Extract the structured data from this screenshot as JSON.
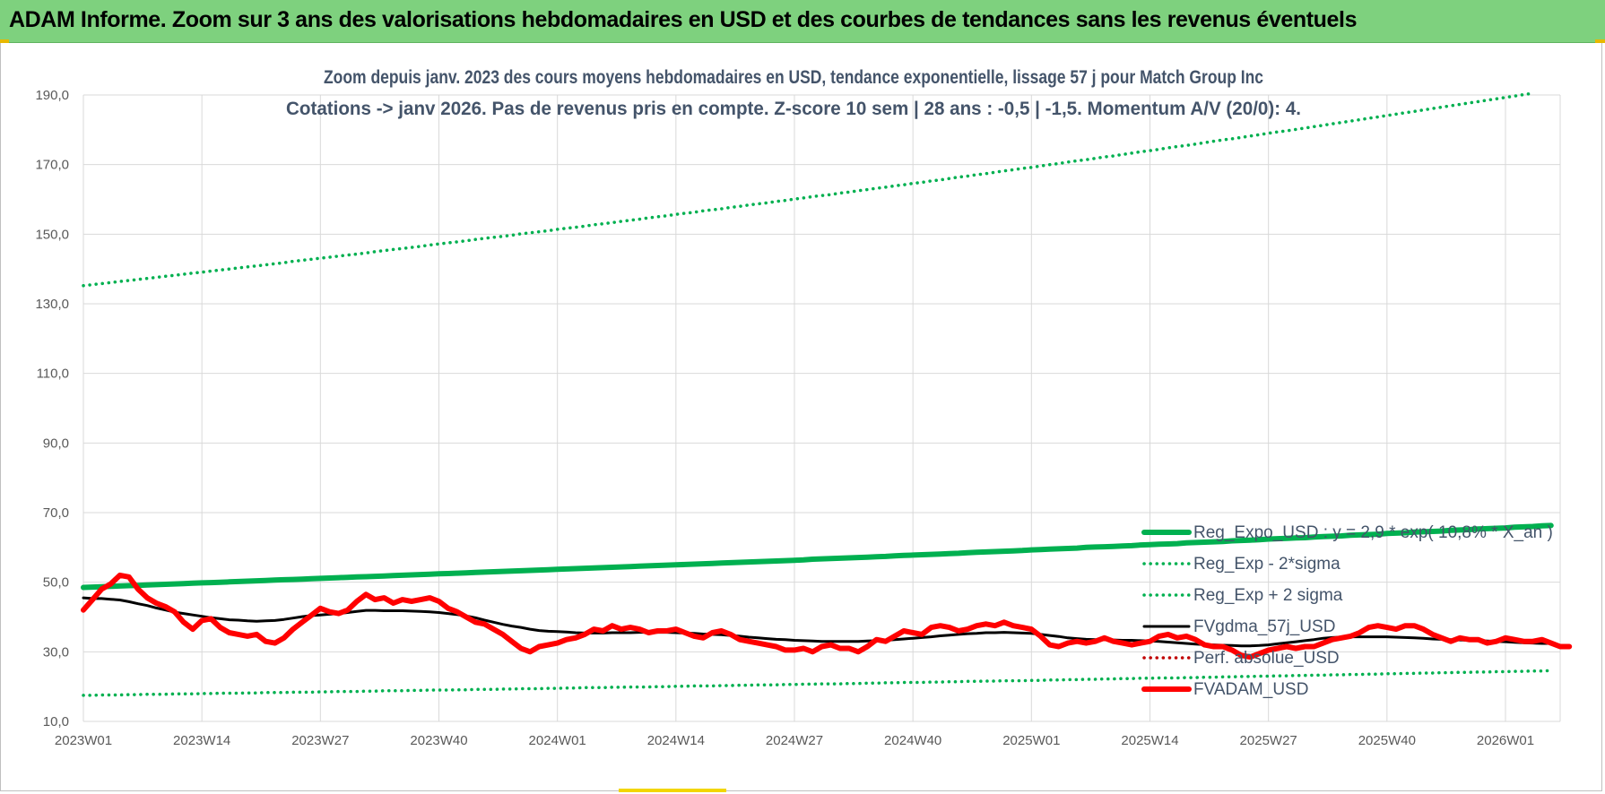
{
  "header": {
    "title": "ADAM Informe. Zoom sur 3 ans des valorisations hebdomadaires en USD et des courbes de tendances sans les revenus éventuels"
  },
  "chart_data": {
    "type": "line",
    "title_lines": [
      "Zoom depuis janv. 2023 des cours moyens hebdomadaires en USD, tendance exponentielle, lissage 57 j pour Match Group Inc",
      "Cotations -> janv 2026. Pas de revenus pris en compte. Z-score 10 sem | 28 ans : -0,5 | -1,5. Momentum A/V (20/0): 4."
    ],
    "xlabel": "",
    "ylabel": "",
    "ylim": [
      10,
      190
    ],
    "x_ticks": [
      "2023W01",
      "2023W14",
      "2023W27",
      "2023W40",
      "2024W01",
      "2024W14",
      "2024W27",
      "2024W40",
      "2025W01",
      "2025W14",
      "2025W27",
      "2025W40",
      "2026W01"
    ],
    "y_ticks": [
      "10,0",
      "30,0",
      "50,0",
      "70,0",
      "90,0",
      "110,0",
      "130,0",
      "150,0",
      "170,0",
      "190,0"
    ],
    "y_tick_values": [
      10,
      30,
      50,
      70,
      90,
      110,
      130,
      150,
      170,
      190
    ],
    "grid": true,
    "legend_position": "right",
    "n_weeks": 162,
    "series": [
      {
        "name": "Reg_Expo_USD : y = 2,9 * exp( 10,8% * X_an )",
        "style": "solid-thick",
        "color": "#00b050",
        "values": [
          48.5,
          48.6,
          48.7,
          48.8,
          48.9,
          49.0,
          49.1,
          49.2,
          49.3,
          49.4,
          49.5,
          49.6,
          49.7,
          49.8,
          49.9,
          50.0,
          50.1,
          50.2,
          50.3,
          50.4,
          50.5,
          50.6,
          50.7,
          50.8,
          50.9,
          51.0,
          51.1,
          51.2,
          51.3,
          51.4,
          51.5,
          51.6,
          51.7,
          51.8,
          51.9,
          52.0,
          52.1,
          52.2,
          52.3,
          52.4,
          52.5,
          52.6,
          52.7,
          52.8,
          52.9,
          53.0,
          53.1,
          53.2,
          53.3,
          53.4,
          53.5,
          53.6,
          53.7,
          53.8,
          53.9,
          54.0,
          54.1,
          54.2,
          54.3,
          54.4,
          54.5,
          54.6,
          54.7,
          54.8,
          54.9,
          55.0,
          55.1,
          55.2,
          55.3,
          55.4,
          55.5,
          55.6,
          55.7,
          55.8,
          55.9,
          56.0,
          56.1,
          56.2,
          56.3,
          56.4,
          56.6,
          56.7,
          56.8,
          56.9,
          57.0,
          57.1,
          57.2,
          57.3,
          57.4,
          57.6,
          57.7,
          57.8,
          57.9,
          58.0,
          58.1,
          58.2,
          58.3,
          58.5,
          58.6,
          58.7,
          58.8,
          58.9,
          59.0,
          59.1,
          59.3,
          59.4,
          59.5,
          59.6,
          59.7,
          59.8,
          60.0,
          60.1,
          60.2,
          60.3,
          60.4,
          60.5,
          60.7,
          60.8,
          60.9,
          61.0,
          61.1,
          61.3,
          61.4,
          61.5,
          61.6,
          61.7,
          61.9,
          62.0,
          62.1,
          62.2,
          62.4,
          62.5,
          62.6,
          62.7,
          62.8,
          63.0,
          63.1,
          63.2,
          63.3,
          63.5,
          63.6,
          63.7,
          63.8,
          64.0,
          64.1,
          64.2,
          64.4,
          64.5,
          64.6,
          64.7,
          64.9,
          65.0,
          65.1,
          65.3,
          65.4,
          65.5,
          65.6,
          65.8,
          65.9,
          66.0,
          66.2,
          66.3
        ]
      },
      {
        "name": "Reg_Exp - 2*sigma",
        "style": "dotted",
        "color": "#00b050",
        "values": [
          17.5,
          17.5,
          17.6,
          17.6,
          17.6,
          17.7,
          17.7,
          17.8,
          17.8,
          17.8,
          17.9,
          17.9,
          17.9,
          18.0,
          18.0,
          18.1,
          18.1,
          18.1,
          18.2,
          18.2,
          18.3,
          18.3,
          18.3,
          18.4,
          18.4,
          18.4,
          18.5,
          18.5,
          18.6,
          18.6,
          18.6,
          18.7,
          18.7,
          18.8,
          18.8,
          18.8,
          18.9,
          18.9,
          19.0,
          19.0,
          19.0,
          19.1,
          19.1,
          19.2,
          19.2,
          19.2,
          19.3,
          19.3,
          19.4,
          19.4,
          19.4,
          19.5,
          19.5,
          19.6,
          19.6,
          19.7,
          19.7,
          19.7,
          19.8,
          19.8,
          19.9,
          19.9,
          19.9,
          20.0,
          20.0,
          20.1,
          20.1,
          20.2,
          20.2,
          20.2,
          20.3,
          20.3,
          20.4,
          20.4,
          20.5,
          20.5,
          20.5,
          20.6,
          20.6,
          20.7,
          20.7,
          20.8,
          20.8,
          20.8,
          20.9,
          20.9,
          21.0,
          21.0,
          21.1,
          21.1,
          21.2,
          21.2,
          21.2,
          21.3,
          21.3,
          21.4,
          21.4,
          21.5,
          21.5,
          21.6,
          21.6,
          21.7,
          21.7,
          21.7,
          21.8,
          21.8,
          21.9,
          21.9,
          22.0,
          22.0,
          22.1,
          22.1,
          22.2,
          22.2,
          22.3,
          22.3,
          22.4,
          22.4,
          22.5,
          22.5,
          22.5,
          22.6,
          22.6,
          22.7,
          22.7,
          22.8,
          22.8,
          22.9,
          22.9,
          23.0,
          23.0,
          23.1,
          23.1,
          23.2,
          23.2,
          23.3,
          23.3,
          23.4,
          23.4,
          23.5,
          23.5,
          23.6,
          23.6,
          23.7,
          23.7,
          23.8,
          23.8,
          23.9,
          23.9,
          24.0,
          24.0,
          24.1,
          24.1,
          24.2,
          24.2,
          24.3,
          24.3,
          24.4,
          24.4,
          24.5,
          24.5,
          24.6
        ]
      },
      {
        "name": "Reg_Exp + 2 sigma",
        "style": "dotted",
        "color": "#00b050",
        "values": [
          135.2,
          135.5,
          135.8,
          136.1,
          136.4,
          136.7,
          137.0,
          137.3,
          137.6,
          137.9,
          138.2,
          138.5,
          138.8,
          139.1,
          139.4,
          139.7,
          140.0,
          140.3,
          140.6,
          140.9,
          141.2,
          141.5,
          141.8,
          142.2,
          142.5,
          142.8,
          143.1,
          143.4,
          143.7,
          144.0,
          144.3,
          144.6,
          145.0,
          145.3,
          145.6,
          145.9,
          146.2,
          146.5,
          146.9,
          147.2,
          147.5,
          147.8,
          148.1,
          148.5,
          148.8,
          149.1,
          149.4,
          149.7,
          150.1,
          150.4,
          150.7,
          151.0,
          151.4,
          151.7,
          152.0,
          152.3,
          152.7,
          153.0,
          153.3,
          153.7,
          154.0,
          154.3,
          154.7,
          155.0,
          155.3,
          155.7,
          156.0,
          156.3,
          156.7,
          157.0,
          157.3,
          157.7,
          158.0,
          158.4,
          158.7,
          159.0,
          159.4,
          159.7,
          160.1,
          160.4,
          160.8,
          161.1,
          161.4,
          161.8,
          162.1,
          162.5,
          162.8,
          163.2,
          163.5,
          163.9,
          164.2,
          164.6,
          164.9,
          165.3,
          165.6,
          166.0,
          166.4,
          166.7,
          167.1,
          167.4,
          167.8,
          168.2,
          168.5,
          168.9,
          169.2,
          169.6,
          170.0,
          170.3,
          170.7,
          171.1,
          171.4,
          171.8,
          172.2,
          172.5,
          172.9,
          173.3,
          173.7,
          174.0,
          174.4,
          174.8,
          175.2,
          175.5,
          175.9,
          176.3,
          176.7,
          177.1,
          177.4,
          177.8,
          178.2,
          178.6,
          179.0,
          179.4,
          179.7,
          180.1,
          180.5,
          180.9,
          181.3,
          181.7,
          182.1,
          182.5,
          182.9,
          183.3,
          183.7,
          184.1,
          184.5,
          184.9,
          185.3,
          185.7,
          186.1,
          186.5,
          186.9,
          187.3,
          187.7,
          188.1,
          188.5,
          188.9,
          189.3,
          189.7,
          190.1,
          190.5
        ]
      },
      {
        "name": "FVgdma_57j_USD",
        "style": "solid",
        "color": "#000000",
        "values": [
          45.5,
          45.3,
          45.3,
          45.1,
          44.9,
          44.4,
          43.8,
          43.3,
          42.6,
          42.0,
          41.4,
          41.0,
          40.6,
          40.2,
          39.8,
          39.5,
          39.2,
          39.1,
          38.9,
          38.8,
          38.9,
          39.0,
          39.3,
          39.7,
          40.1,
          40.4,
          40.6,
          40.8,
          41.0,
          41.3,
          41.6,
          41.9,
          41.9,
          41.8,
          41.8,
          41.8,
          41.7,
          41.6,
          41.5,
          41.3,
          41.0,
          40.7,
          40.3,
          39.8,
          39.1,
          38.5,
          37.9,
          37.4,
          37.0,
          36.5,
          36.1,
          35.9,
          35.8,
          35.7,
          35.5,
          35.4,
          35.4,
          35.4,
          35.5,
          35.5,
          35.5,
          35.6,
          35.6,
          35.6,
          35.6,
          35.5,
          35.4,
          35.3,
          35.1,
          35.0,
          34.9,
          34.7,
          34.5,
          34.2,
          34.0,
          33.8,
          33.6,
          33.5,
          33.3,
          33.2,
          33.1,
          33.0,
          33.0,
          33.0,
          33.0,
          33.0,
          33.1,
          33.2,
          33.3,
          33.5,
          33.7,
          33.9,
          34.1,
          34.3,
          34.6,
          34.8,
          35.0,
          35.2,
          35.3,
          35.5,
          35.5,
          35.6,
          35.5,
          35.4,
          35.3,
          35.0,
          34.7,
          34.4,
          34.0,
          33.8,
          33.6,
          33.5,
          33.5,
          33.4,
          33.3,
          33.3,
          33.2,
          33.1,
          33.0,
          32.8,
          32.6,
          32.4,
          32.2,
          32.1,
          32.0,
          31.9,
          31.8,
          31.7,
          31.7,
          31.8,
          32.0,
          32.3,
          32.6,
          32.9,
          33.2,
          33.5,
          33.9,
          34.1,
          34.2,
          34.3,
          34.3,
          34.3,
          34.3,
          34.3,
          34.2,
          34.1,
          34.0,
          33.9,
          33.7,
          33.6,
          33.5,
          33.4,
          33.3,
          33.2,
          33.1,
          33.0,
          32.9,
          32.7,
          32.6,
          32.5,
          32.4,
          32.4
        ]
      },
      {
        "name": "Perf.  absolue_USD",
        "style": "dotted",
        "color": "#c00000",
        "values": []
      },
      {
        "name": "FVADAM_USD",
        "style": "solid-thick",
        "color": "#ff0000",
        "values": [
          42.0,
          45.0,
          48.0,
          49.5,
          52.0,
          51.5,
          48.0,
          45.5,
          44.0,
          43.0,
          41.5,
          38.5,
          36.5,
          39.0,
          39.5,
          37.0,
          35.5,
          35.0,
          34.5,
          35.0,
          33.0,
          32.5,
          34.0,
          36.5,
          38.5,
          40.5,
          42.5,
          41.5,
          41.0,
          42.0,
          44.5,
          46.5,
          45.0,
          45.5,
          44.0,
          45.0,
          44.5,
          45.0,
          45.5,
          44.5,
          42.5,
          41.5,
          40.0,
          38.5,
          38.0,
          36.5,
          35.0,
          33.0,
          31.0,
          30.0,
          31.5,
          32.0,
          32.5,
          33.5,
          34.0,
          35.0,
          36.5,
          36.0,
          37.5,
          36.5,
          37.0,
          36.5,
          35.5,
          36.0,
          36.0,
          36.5,
          35.5,
          34.5,
          34.0,
          35.5,
          36.0,
          35.0,
          33.5,
          33.0,
          32.5,
          32.0,
          31.5,
          30.5,
          30.5,
          31.0,
          30.0,
          31.5,
          32.0,
          31.0,
          31.0,
          30.0,
          31.5,
          33.5,
          33.0,
          34.5,
          36.0,
          35.5,
          35.0,
          37.0,
          37.5,
          37.0,
          36.0,
          36.5,
          37.5,
          38.0,
          37.5,
          38.5,
          37.5,
          37.0,
          36.5,
          34.5,
          32.0,
          31.5,
          32.5,
          33.0,
          32.5,
          33.0,
          34.0,
          33.0,
          32.5,
          32.0,
          32.5,
          33.0,
          34.5,
          35.0,
          34.0,
          34.5,
          33.5,
          32.0,
          31.5,
          31.5,
          30.5,
          29.0,
          28.5,
          29.5,
          30.5,
          31.0,
          31.5,
          31.0,
          31.5,
          31.5,
          32.5,
          33.5,
          34.0,
          34.5,
          35.5,
          37.0,
          37.5,
          37.0,
          36.5,
          37.5,
          37.5,
          36.5,
          35.0,
          34.0,
          33.0,
          34.0,
          33.5,
          33.5,
          32.5,
          33.0,
          34.0,
          33.5,
          33.0,
          33.0,
          33.5,
          32.5,
          31.5,
          31.5
        ]
      }
    ]
  }
}
